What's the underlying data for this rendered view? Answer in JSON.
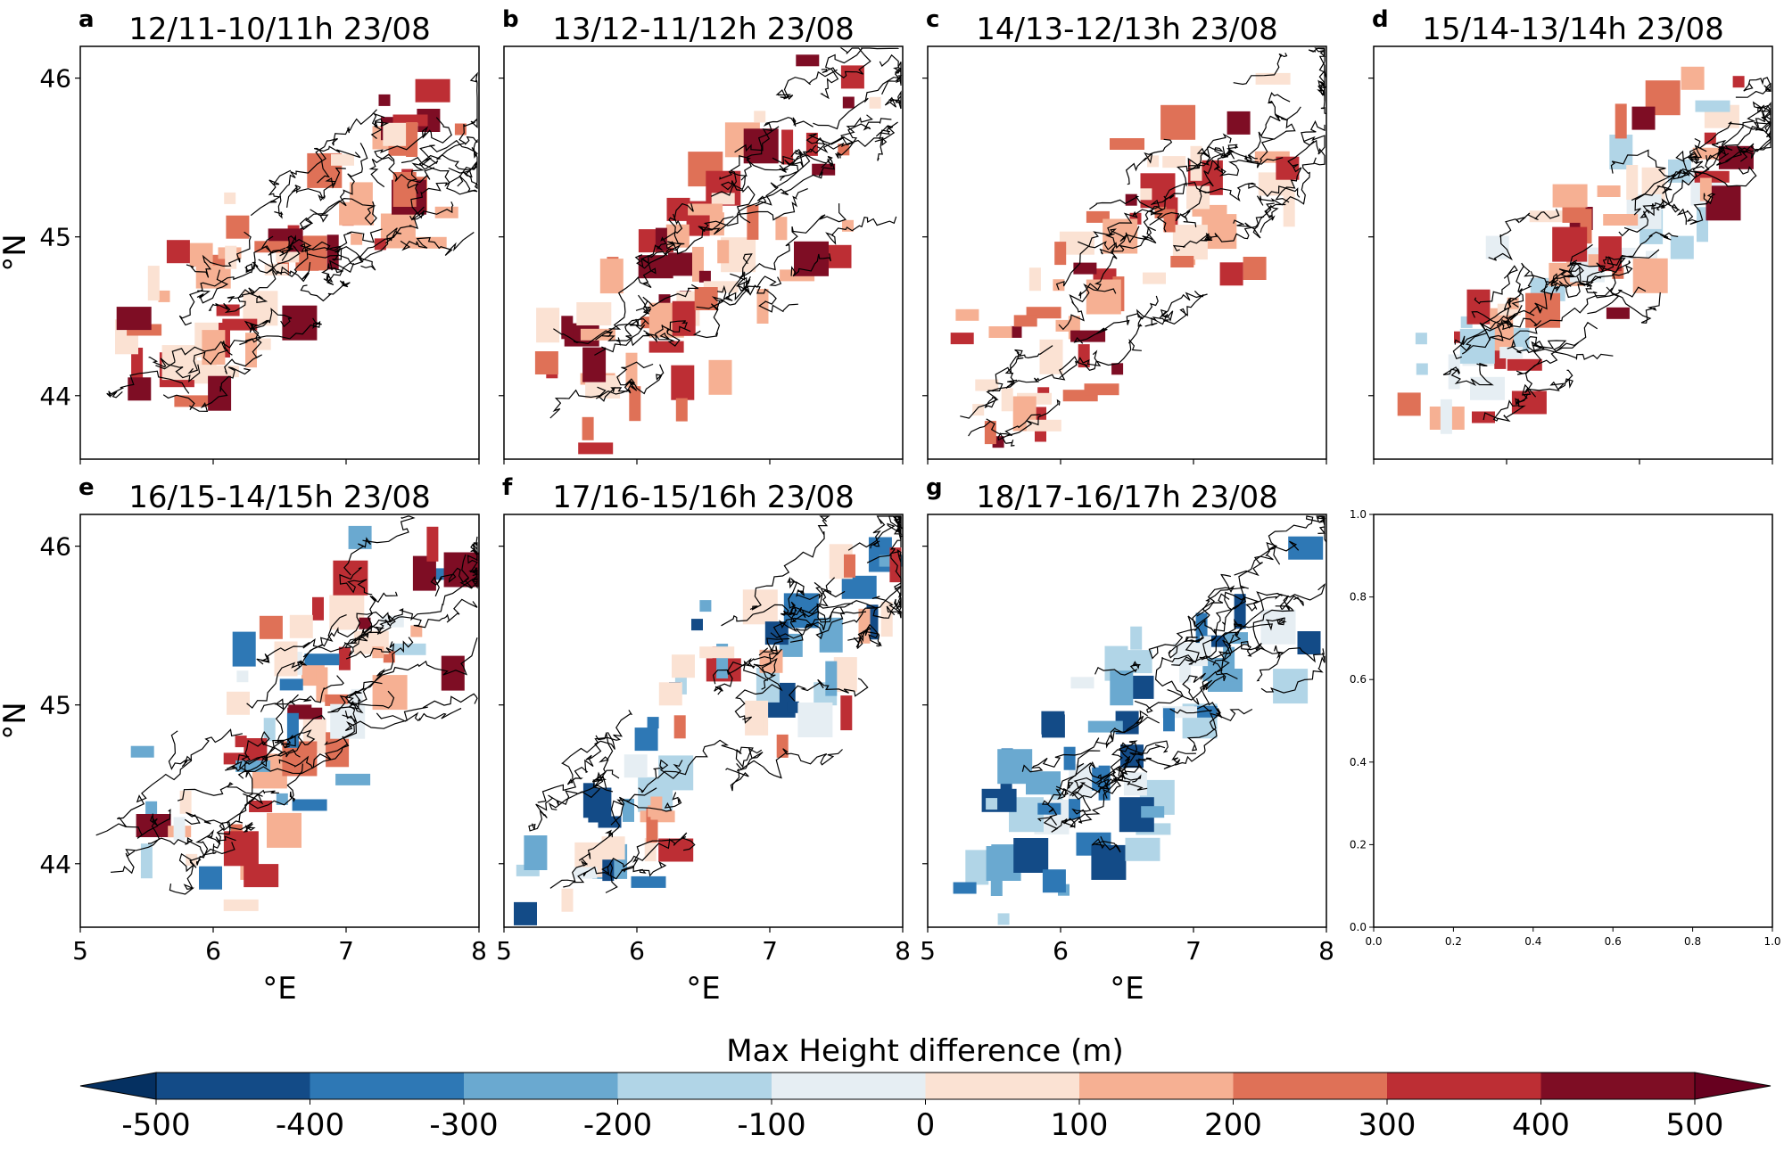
{
  "figure": {
    "colorbar_label": "Max Height difference (m)",
    "colorbar_ticks": [
      "-500",
      "-400",
      "-300",
      "-200",
      "-100",
      "0",
      "100",
      "200",
      "300",
      "400",
      "500"
    ],
    "colorbar_colors": [
      "#053061",
      "#134b87",
      "#2e78b5",
      "#6aa9d0",
      "#b1d5e7",
      "#e6eef3",
      "#fbe2d3",
      "#f6b093",
      "#df7157",
      "#bd2e34",
      "#7e0d24",
      "#67001f"
    ]
  },
  "chart_data": [
    {
      "type": "heatmap",
      "panel": "a",
      "title": "12/11-10/11h 23/08",
      "xlabel": "",
      "ylabel": "°N",
      "xlim": [
        5,
        8
      ],
      "ylim": [
        43.6,
        46.2
      ],
      "xticks": [],
      "yticks": [
        "44",
        "45",
        "46"
      ],
      "note_values_approx": "Max height difference grid (m), mostly positive",
      "dominant_range": [
        0,
        500
      ]
    },
    {
      "type": "heatmap",
      "panel": "b",
      "title": "13/12-11/12h 23/08",
      "xlabel": "",
      "ylabel": "",
      "xlim": [
        5,
        8
      ],
      "ylim": [
        43.6,
        46.2
      ],
      "xticks": [],
      "yticks": [],
      "dominant_range": [
        0,
        500
      ]
    },
    {
      "type": "heatmap",
      "panel": "c",
      "title": "14/13-12/13h 23/08",
      "xlabel": "",
      "ylabel": "",
      "xlim": [
        5,
        8
      ],
      "ylim": [
        43.6,
        46.2
      ],
      "xticks": [],
      "yticks": [],
      "dominant_range": [
        0,
        500
      ]
    },
    {
      "type": "heatmap",
      "panel": "d",
      "title": "15/14-13/14h 23/08",
      "xlabel": "",
      "ylabel": "",
      "xlim": [
        5,
        8
      ],
      "ylim": [
        43.6,
        46.2
      ],
      "xticks": [],
      "yticks": [],
      "dominant_range": [
        -200,
        500
      ]
    },
    {
      "type": "heatmap",
      "panel": "e",
      "title": "16/15-14/15h 23/08",
      "xlabel": "°E",
      "ylabel": "°N",
      "xlim": [
        5,
        8
      ],
      "ylim": [
        43.6,
        46.2
      ],
      "xticks": [
        "5",
        "6",
        "7",
        "8"
      ],
      "yticks": [
        "44",
        "45",
        "46"
      ],
      "dominant_range": [
        -400,
        500
      ]
    },
    {
      "type": "heatmap",
      "panel": "f",
      "title": "17/16-15/16h 23/08",
      "xlabel": "°E",
      "ylabel": "",
      "xlim": [
        5,
        8
      ],
      "ylim": [
        43.6,
        46.2
      ],
      "xticks": [
        "5",
        "6",
        "7",
        "8"
      ],
      "yticks": [],
      "dominant_range": [
        -500,
        400
      ]
    },
    {
      "type": "heatmap",
      "panel": "g",
      "title": "18/17-16/17h 23/08",
      "xlabel": "°E",
      "ylabel": "",
      "xlim": [
        5,
        8
      ],
      "ylim": [
        43.6,
        46.2
      ],
      "xticks": [
        "5",
        "6",
        "7",
        "8"
      ],
      "yticks": [],
      "dominant_range": [
        -500,
        0
      ]
    },
    {
      "type": "scatter",
      "panel": "empty",
      "title": "",
      "xlabel": "",
      "ylabel": "",
      "xlim": [
        0,
        1
      ],
      "ylim": [
        0,
        1
      ],
      "xticks": [
        "0.0",
        "0.2",
        "0.4",
        "0.6",
        "0.8",
        "1.0"
      ],
      "yticks": [
        "0.0",
        "0.2",
        "0.4",
        "0.6",
        "0.8",
        "1.0"
      ],
      "values": []
    }
  ]
}
